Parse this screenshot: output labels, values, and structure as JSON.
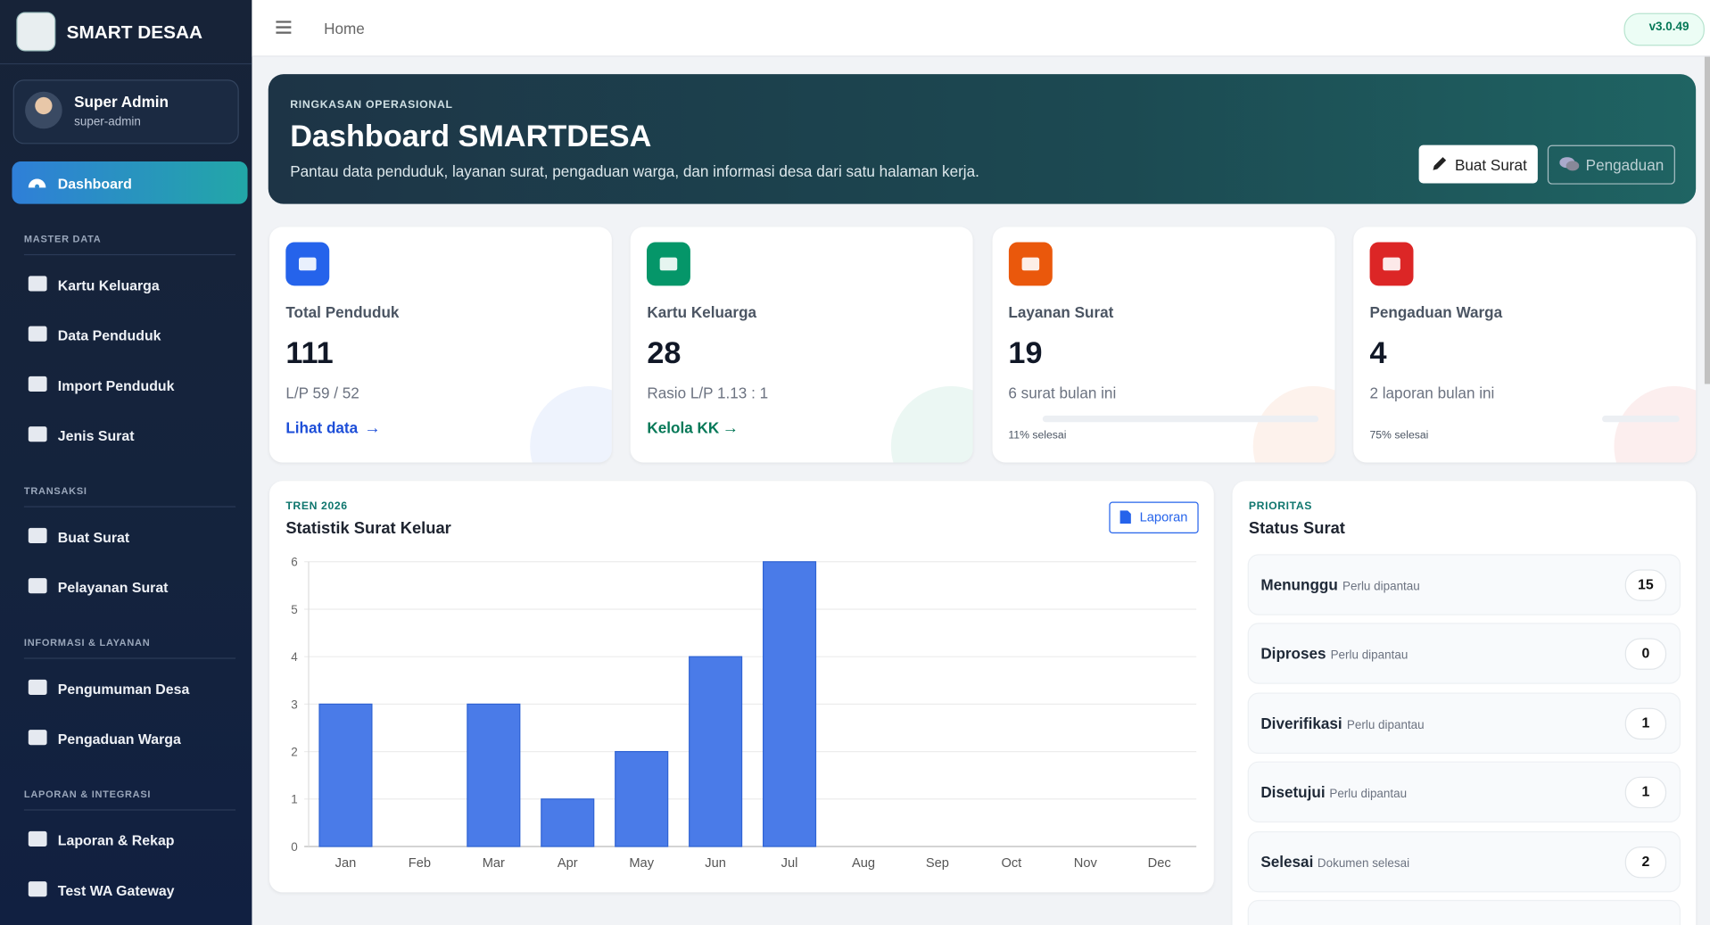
{
  "brand": "SMART DESAA",
  "user": {
    "name": "Super Admin",
    "role": "super-admin"
  },
  "nav": {
    "active": "Dashboard",
    "sections": [
      {
        "title": "MASTER DATA",
        "items": [
          "Kartu Keluarga",
          "Data Penduduk",
          "Import Penduduk",
          "Jenis Surat"
        ]
      },
      {
        "title": "TRANSAKSI",
        "items": [
          "Buat Surat",
          "Pelayanan Surat"
        ]
      },
      {
        "title": "INFORMASI & LAYANAN",
        "items": [
          "Pengumuman Desa",
          "Pengaduan Warga"
        ]
      },
      {
        "title": "LAPORAN & INTEGRASI",
        "items": [
          "Laporan & Rekap",
          "Test WA Gateway"
        ]
      }
    ]
  },
  "topbar": {
    "breadcrumb": "Home",
    "version": "v3.0.49"
  },
  "hero": {
    "eyebrow": "RINGKASAN OPERASIONAL",
    "title": "Dashboard SMARTDESA",
    "subtitle": "Pantau data penduduk, layanan surat, pengaduan warga, dan informasi desa dari satu halaman kerja.",
    "buttons": [
      "Buat Surat",
      "Pengaduan"
    ]
  },
  "stats": [
    {
      "label": "Total Penduduk",
      "value": 111,
      "note": "L/P 59 / 52",
      "link": "Lihat data"
    },
    {
      "label": "Kartu Keluarga",
      "value": 28,
      "note": "Rasio L/P 1.13 : 1",
      "link": "Kelola KK"
    },
    {
      "label": "Layanan Surat",
      "value": 19,
      "note": "6 surat bulan ini",
      "progress": "11% selesai"
    },
    {
      "label": "Pengaduan Warga",
      "value": 4,
      "note": "2 laporan bulan ini",
      "progress": "75% selesai"
    }
  ],
  "chart_data": {
    "type": "bar",
    "eyebrow": "TREN 2026",
    "title": "Statistik Surat Keluar",
    "button": "Laporan",
    "categories": [
      "Jan",
      "Feb",
      "Mar",
      "Apr",
      "May",
      "Jun",
      "Jul",
      "Aug",
      "Sep",
      "Oct",
      "Nov",
      "Dec"
    ],
    "values": [
      3,
      0,
      3,
      1,
      2,
      4,
      6,
      0,
      0,
      0,
      0,
      0
    ],
    "color": "#4a7be8",
    "ylim": [
      0,
      6
    ],
    "yticks": [
      0,
      1,
      2,
      3,
      4,
      5,
      6
    ],
    "grid": true
  },
  "status": {
    "eyebrow": "PRIORITAS",
    "title": "Status Surat",
    "items": [
      {
        "label": "Menunggu",
        "note": "Perlu dipantau",
        "count": 15
      },
      {
        "label": "Diproses",
        "note": "Perlu dipantau",
        "count": 0
      },
      {
        "label": "Diverifikasi",
        "note": "Perlu dipantau",
        "count": 1
      },
      {
        "label": "Disetujui",
        "note": "Perlu dipantau",
        "count": 1
      },
      {
        "label": "Selesai",
        "note": "Dokumen selesai",
        "count": 2
      }
    ]
  }
}
